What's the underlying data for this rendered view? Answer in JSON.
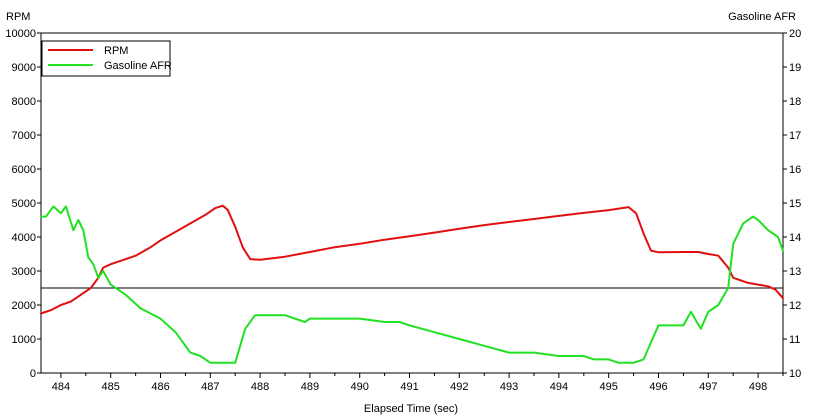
{
  "colors": {
    "rpm": "#e01010",
    "afr": "#22e022",
    "axis": "#000000",
    "background": "#ffffff",
    "reference_line": "#000000"
  },
  "chart_data": {
    "type": "line",
    "xlabel": "Elapsed Time (sec)",
    "y_left_label": "RPM",
    "y_right_label": "Gasoline AFR",
    "xlim": [
      483.6,
      498.5
    ],
    "ylim_left": [
      0,
      10000
    ],
    "ylim_right": [
      10,
      20
    ],
    "x_ticks": [
      "484",
      "485",
      "486",
      "487",
      "488",
      "489",
      "490",
      "491",
      "492",
      "493",
      "494",
      "495",
      "496",
      "497",
      "498"
    ],
    "y_left_ticks": [
      "0",
      "1000",
      "2000",
      "3000",
      "4000",
      "5000",
      "6000",
      "7000",
      "8000",
      "9000",
      "10000"
    ],
    "y_right_ticks": [
      "10",
      "11",
      "12",
      "13",
      "14",
      "15",
      "16",
      "17",
      "18",
      "19",
      "20"
    ],
    "grid": false,
    "legend_position": "top-left",
    "reference_line": {
      "axis": "left",
      "value": 2500
    },
    "series": [
      {
        "name": "RPM",
        "axis": "left",
        "color": "#e01010",
        "x": [
          483.6,
          483.8,
          484.0,
          484.2,
          484.4,
          484.6,
          484.75,
          484.85,
          485.0,
          485.2,
          485.5,
          485.8,
          486.0,
          486.3,
          486.6,
          486.9,
          487.1,
          487.25,
          487.35,
          487.5,
          487.65,
          487.8,
          488.0,
          488.5,
          489.0,
          489.5,
          490.0,
          490.5,
          491.0,
          491.5,
          492.0,
          492.5,
          493.0,
          493.5,
          494.0,
          494.5,
          495.0,
          495.4,
          495.55,
          495.7,
          495.85,
          496.0,
          496.5,
          496.8,
          497.0,
          497.2,
          497.4,
          497.5,
          497.8,
          498.0,
          498.2,
          498.35,
          498.5
        ],
        "values": [
          1750,
          1850,
          2000,
          2100,
          2300,
          2500,
          2800,
          3100,
          3200,
          3300,
          3450,
          3700,
          3900,
          4150,
          4400,
          4650,
          4850,
          4920,
          4800,
          4300,
          3700,
          3350,
          3330,
          3420,
          3560,
          3700,
          3800,
          3920,
          4020,
          4130,
          4240,
          4350,
          4440,
          4530,
          4620,
          4710,
          4790,
          4880,
          4700,
          4100,
          3600,
          3550,
          3560,
          3560,
          3500,
          3450,
          3100,
          2800,
          2650,
          2600,
          2550,
          2450,
          2200
        ]
      },
      {
        "name": "Gasoline AFR",
        "axis": "right",
        "color": "#22e022",
        "x": [
          483.6,
          483.7,
          483.85,
          484.0,
          484.1,
          484.25,
          484.35,
          484.45,
          484.55,
          484.65,
          484.75,
          484.85,
          485.0,
          485.3,
          485.6,
          486.0,
          486.3,
          486.6,
          486.8,
          487.0,
          487.2,
          487.5,
          487.7,
          487.9,
          488.0,
          488.5,
          488.9,
          489.0,
          489.5,
          490.0,
          490.5,
          490.8,
          491.0,
          491.5,
          492.0,
          492.5,
          493.0,
          493.5,
          494.0,
          494.5,
          494.7,
          495.0,
          495.2,
          495.5,
          495.7,
          495.85,
          496.0,
          496.5,
          496.65,
          496.85,
          497.0,
          497.2,
          497.4,
          497.5,
          497.7,
          497.9,
          498.0,
          498.2,
          498.4,
          498.5
        ],
        "values": [
          14.6,
          14.6,
          14.9,
          14.7,
          14.9,
          14.2,
          14.5,
          14.2,
          13.4,
          13.2,
          12.8,
          13.0,
          12.6,
          12.3,
          11.9,
          11.6,
          11.2,
          10.6,
          10.5,
          10.3,
          10.3,
          10.3,
          11.3,
          11.7,
          11.7,
          11.7,
          11.5,
          11.6,
          11.6,
          11.6,
          11.5,
          11.5,
          11.4,
          11.2,
          11.0,
          10.8,
          10.6,
          10.6,
          10.5,
          10.5,
          10.4,
          10.4,
          10.3,
          10.3,
          10.4,
          10.9,
          11.4,
          11.4,
          11.8,
          11.3,
          11.8,
          12.0,
          12.5,
          13.8,
          14.4,
          14.6,
          14.5,
          14.2,
          14.0,
          13.6
        ]
      }
    ]
  }
}
